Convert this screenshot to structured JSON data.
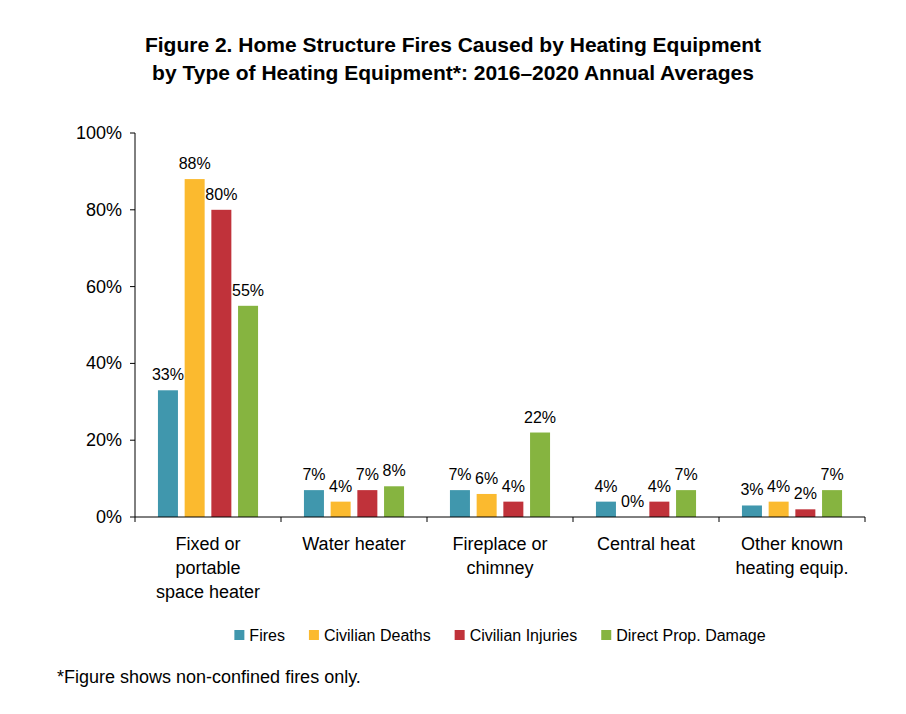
{
  "chart_data": {
    "type": "bar",
    "title": "Figure 2. Home Structure Fires Caused by Heating Equipment by Type of Heating Equipment*: 2016–2020 Annual Averages",
    "categories": [
      "Fixed or portable space heater",
      "Water heater",
      "Fireplace or chimney",
      "Central heat",
      "Other known heating equip."
    ],
    "series": [
      {
        "name": "Fires",
        "color": "#4097ad",
        "values": [
          33,
          7,
          7,
          4,
          3
        ],
        "value_labels": [
          "33%",
          "7%",
          "7%",
          "4%",
          "3%"
        ]
      },
      {
        "name": "Civilian Deaths",
        "color": "#fbba2f",
        "values": [
          88,
          4,
          6,
          0,
          4
        ],
        "value_labels": [
          "88%",
          "4%",
          "6%",
          "0%",
          "4%"
        ]
      },
      {
        "name": "Civilian Injuries",
        "color": "#c0323a",
        "values": [
          80,
          7,
          4,
          4,
          2
        ],
        "value_labels": [
          "80%",
          "7%",
          "4%",
          "4%",
          "2%"
        ]
      },
      {
        "name": "Direct Prop. Damage",
        "color": "#86b440",
        "values": [
          55,
          8,
          22,
          7,
          7
        ],
        "value_labels": [
          "55%",
          "8%",
          "22%",
          "7%",
          "7%"
        ]
      }
    ],
    "ylim": [
      0,
      100
    ],
    "yticks": [
      {
        "value": 0,
        "label": "0%"
      },
      {
        "value": 20,
        "label": "20%"
      },
      {
        "value": 40,
        "label": "40%"
      },
      {
        "value": 60,
        "label": "60%"
      },
      {
        "value": 80,
        "label": "80%"
      },
      {
        "value": 100,
        "label": "100%"
      }
    ],
    "grid": false,
    "legend": "bottom",
    "data_labels": true,
    "annotations": [
      "*Figure shows non-confined fires only."
    ]
  }
}
